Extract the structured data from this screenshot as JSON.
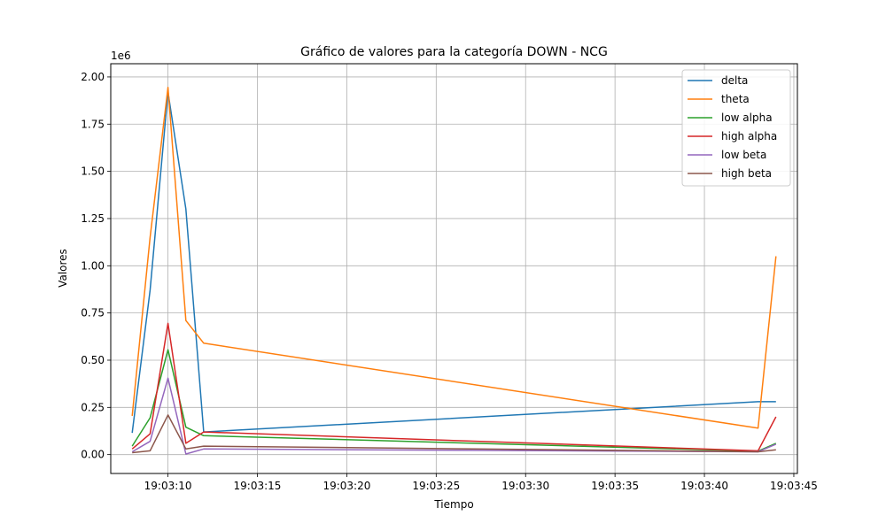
{
  "chart_data": {
    "type": "line",
    "title": "Gráfico de valores para la categoría DOWN - NCG",
    "xlabel": "Tiempo",
    "ylabel": "Valores",
    "y_offset_label": "1e6",
    "grid": true,
    "legend_position": "top-right",
    "xlim": [
      "19:03:06.8",
      "19:03:45.2"
    ],
    "ylim": [
      -100000,
      2070000
    ],
    "x_ticks": [
      "19:03:10",
      "19:03:15",
      "19:03:20",
      "19:03:25",
      "19:03:30",
      "19:03:35",
      "19:03:40",
      "19:03:45"
    ],
    "y_ticks": [
      "0.00",
      "0.25",
      "0.50",
      "0.75",
      "1.00",
      "1.25",
      "1.50",
      "1.75",
      "2.00"
    ],
    "x": [
      "19:03:08",
      "19:03:09",
      "19:03:10",
      "19:03:11",
      "19:03:12",
      "19:03:43",
      "19:03:44"
    ],
    "series": [
      {
        "name": "delta",
        "color": "#1f77b4",
        "values": [
          115000,
          870000,
          1920000,
          1300000,
          120000,
          280000,
          280000
        ]
      },
      {
        "name": "theta",
        "color": "#ff7f0e",
        "values": [
          205000,
          1150000,
          1945000,
          710000,
          590000,
          140000,
          1050000
        ]
      },
      {
        "name": "low alpha",
        "color": "#2ca02c",
        "values": [
          45000,
          195000,
          555000,
          145000,
          100000,
          18000,
          60000
        ]
      },
      {
        "name": "high alpha",
        "color": "#d62728",
        "values": [
          30000,
          110000,
          695000,
          60000,
          120000,
          20000,
          200000
        ]
      },
      {
        "name": "low beta",
        "color": "#9467bd",
        "values": [
          15000,
          70000,
          405000,
          3000,
          30000,
          15000,
          55000
        ]
      },
      {
        "name": "high beta",
        "color": "#8c564b",
        "values": [
          10000,
          20000,
          210000,
          30000,
          45000,
          15000,
          25000
        ]
      }
    ]
  }
}
